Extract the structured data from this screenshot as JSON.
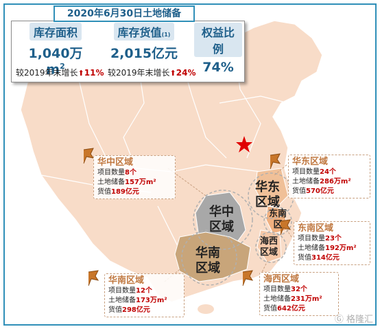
{
  "title": "2020年6月30日土地储备",
  "summary": {
    "inventory_area": {
      "label": "库存面积",
      "value": "1,040万m",
      "unit_sup": "2"
    },
    "inventory_value": {
      "label": "库存货值",
      "note": "(1)",
      "value": "2,015亿元"
    },
    "equity_ratio": {
      "label": "权益比例",
      "value": "74%"
    },
    "growth_area": {
      "text": "较2019年末增长",
      "pct": "11%"
    },
    "growth_value": {
      "text": "较2019年末增长",
      "pct": "24%"
    }
  },
  "regions": {
    "central": {
      "name": "华中区域",
      "l1": "项目数量",
      "v1": "8个",
      "l2": "土地储备",
      "v2": "157万m²",
      "l3": "货值",
      "v3": "189亿元"
    },
    "east": {
      "name": "华东区域",
      "l1": "项目数量",
      "v1": "24个",
      "l2": "土地储备",
      "v2": "286万m²",
      "l3": "货值",
      "v3": "570亿元"
    },
    "southeast": {
      "name": "东南区域",
      "l1": "项目数量",
      "v1": "23个",
      "l2": "土地储备",
      "v2": "192万m²",
      "l3": "货值",
      "v3": "314亿元"
    },
    "south": {
      "name": "华南区域",
      "l1": "项目数量",
      "v1": "12个",
      "l2": "土地储备",
      "v2": "173万m²",
      "l3": "货值",
      "v3": "298亿元"
    },
    "haixi": {
      "name": "海西区域",
      "l1": "项目数量",
      "v1": "32个",
      "l2": "土地储备",
      "v2": "231万m²",
      "l3": "货值",
      "v3": "642亿元"
    }
  },
  "map_labels": {
    "central": "华中\n区域",
    "south": "华南\n区域",
    "east": "华东\n区域",
    "southeast": "东南\n区",
    "haixi": "海西\n区域"
  },
  "watermark": "格隆汇",
  "colors": {
    "accent": "#2f8fb8",
    "map": "#f8dcc8",
    "central_region": "#a8a8a8",
    "south_region": "#c8a57a",
    "highlight": "#c00000"
  }
}
